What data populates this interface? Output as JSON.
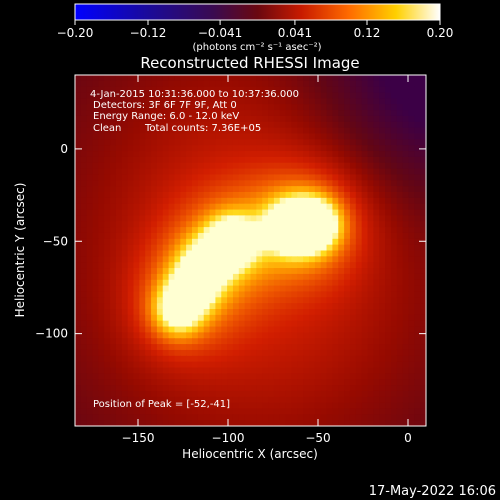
{
  "chart_data": {
    "type": "heatmap",
    "title": "Reconstructed RHESSI Image",
    "xlabel": "Heliocentric X (arcsec)",
    "ylabel": "Heliocentric Y (arcsec)",
    "xlim": [
      -185,
      10
    ],
    "ylim": [
      -150,
      40
    ],
    "x_ticks": [
      -150,
      -100,
      -50,
      0
    ],
    "x_tick_labels": [
      "−150",
      "−100",
      "−50",
      "0"
    ],
    "y_ticks": [
      0,
      -50,
      -100
    ],
    "y_tick_labels": [
      "0",
      "−50",
      "−100"
    ],
    "colorbar": {
      "range": [
        -0.2,
        0.2
      ],
      "ticks": [
        -0.2,
        -0.12,
        -0.041,
        0.041,
        0.12,
        0.2
      ],
      "tick_labels": [
        "−0.20",
        "−0.12",
        "−0.041",
        "0.041",
        "0.12",
        "0.20"
      ],
      "unit_label": "(photons cm⁻² s⁻¹ asec⁻²)",
      "colormap": "blue-purple-red-orange-yellow-white"
    },
    "annotations": {
      "time_range": "4-Jan-2015 10:31:36.000 to 10:37:36.000",
      "detectors": "Detectors: 3F 6F 7F 9F, Att 0",
      "energy": "Energy Range: 6.0 - 12.0 keV",
      "clean": "Clean",
      "total_counts": "Total counts: 7.36E+05",
      "peak": "Position of Peak = [-52,-41]"
    },
    "sources": [
      {
        "x": -52,
        "y": -41,
        "amp": 1.0
      },
      {
        "x": -65,
        "y": -42,
        "amp": 0.85
      },
      {
        "x": -98,
        "y": -50,
        "amp": 0.85
      },
      {
        "x": -112,
        "y": -62,
        "amp": 0.55
      },
      {
        "x": -120,
        "y": -75,
        "amp": 0.55
      },
      {
        "x": -128,
        "y": -88,
        "amp": 0.7
      }
    ],
    "timestamp": "17-May-2022 16:06"
  }
}
